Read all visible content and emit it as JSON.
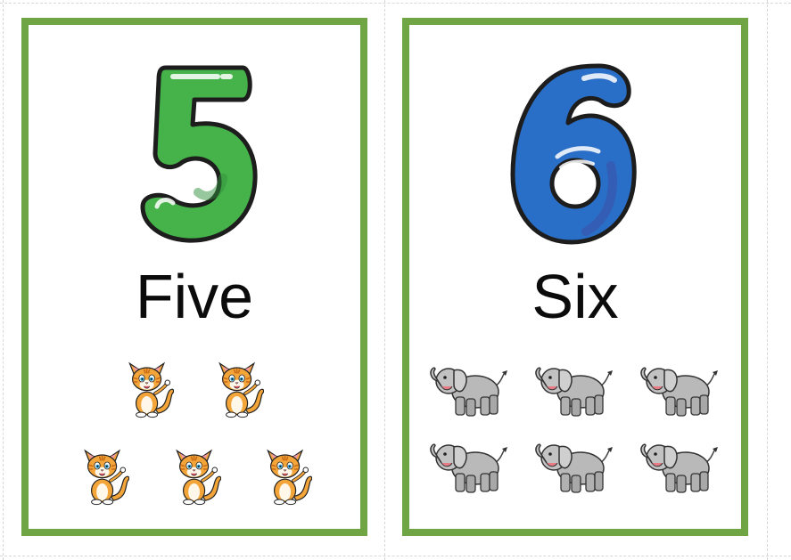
{
  "cards": [
    {
      "numeral": "5",
      "word": "Five",
      "count": 5,
      "animal": "cat-icon",
      "numeral_color": "#46b24a",
      "numeral_shadow": "#2f8f3a"
    },
    {
      "numeral": "6",
      "word": "Six",
      "count": 6,
      "animal": "elephant-icon",
      "numeral_color": "#2a6fc7",
      "numeral_shadow": "#3d4fa8"
    }
  ],
  "colors": {
    "border": "#6fa544",
    "text": "#0b0b0b",
    "cat_fur": "#f3a53a",
    "elephant_skin": "#b9b9b9"
  }
}
